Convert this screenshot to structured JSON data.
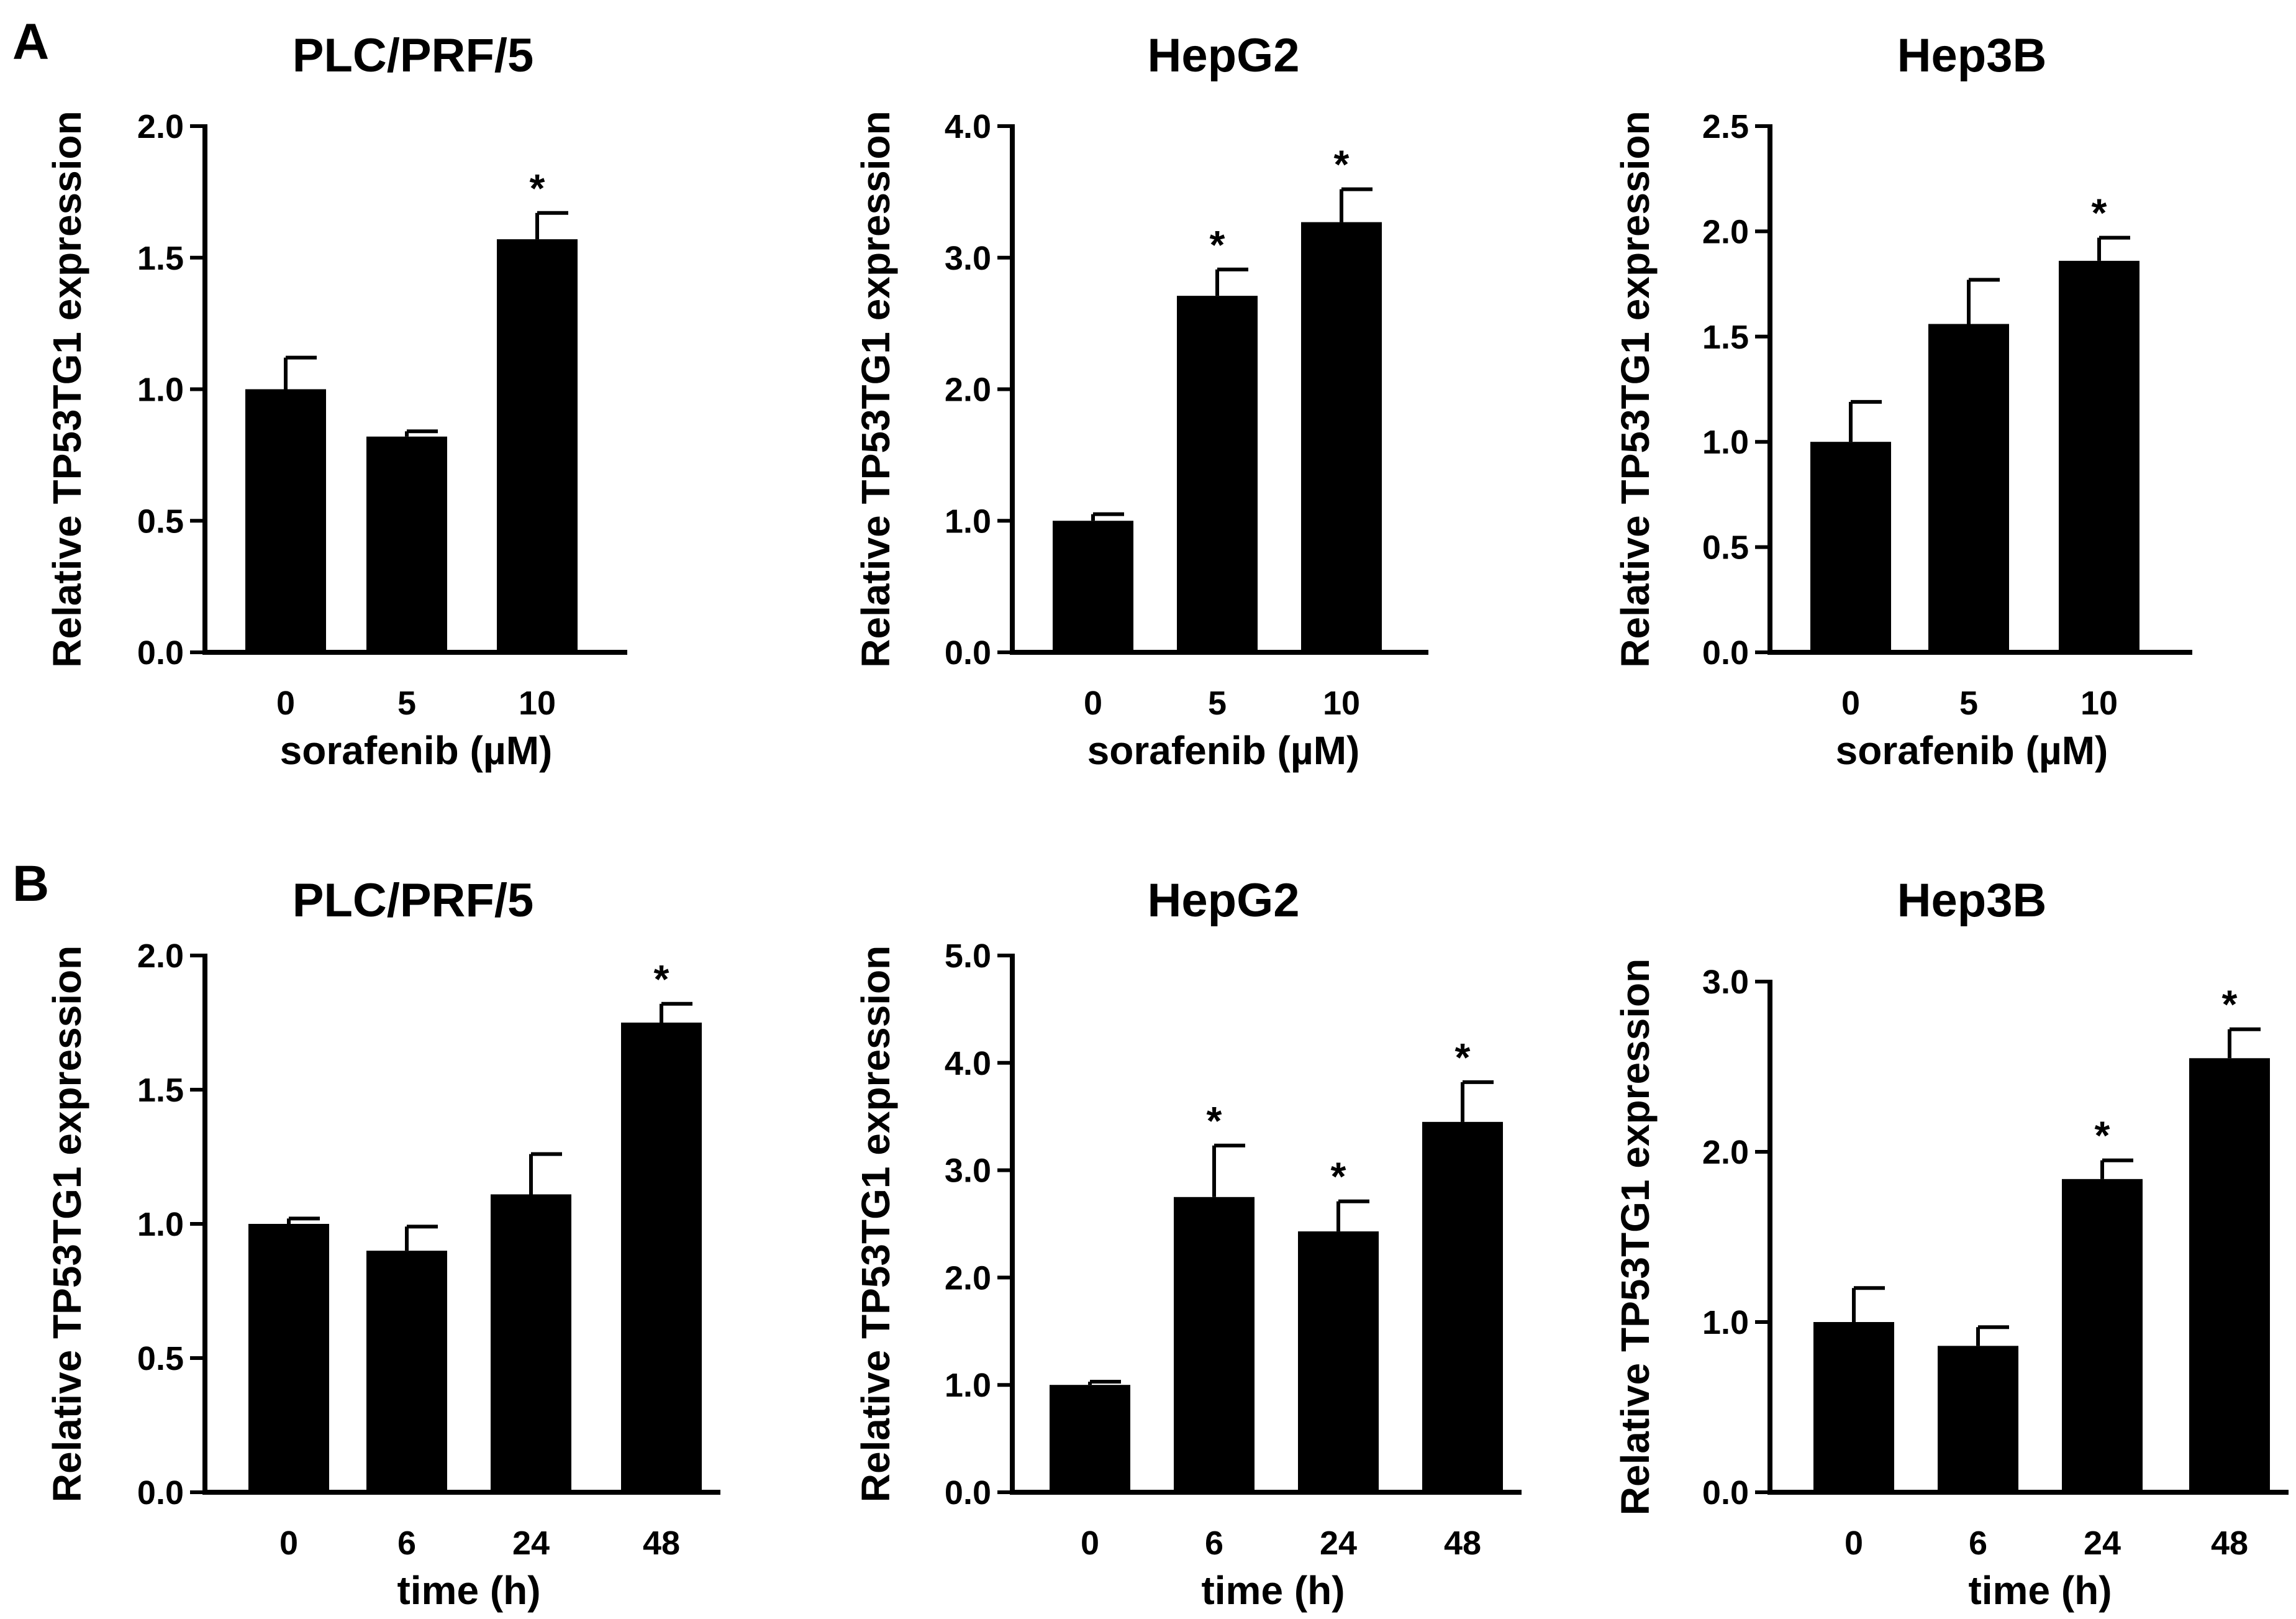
{
  "panels": [
    {
      "letter": "A"
    },
    {
      "letter": "B"
    }
  ],
  "colors": {
    "bar": "#000000",
    "axis": "#000000",
    "background": "#ffffff"
  },
  "chart_data": [
    {
      "type": "bar",
      "panel": "A",
      "title": "PLC/PRF/5",
      "xlabel": "sorafenib (µM)",
      "ylabel": "Relative TP53TG1 expression",
      "categories": [
        "0",
        "5",
        "10"
      ],
      "values": [
        1.0,
        0.82,
        1.57
      ],
      "errors": [
        0.12,
        0.02,
        0.1
      ],
      "significant": [
        false,
        false,
        true
      ],
      "sig_marker": "*",
      "ylim": [
        0,
        2.0
      ],
      "yticks": [
        0,
        0.5,
        1.0,
        1.5,
        2.0
      ],
      "ytick_labels": [
        "0.0",
        "0.5",
        "1.0",
        "1.5",
        "2.0"
      ]
    },
    {
      "type": "bar",
      "panel": "A",
      "title": "HepG2",
      "xlabel": "sorafenib (µM)",
      "ylabel": "Relative TP53TG1 expression",
      "categories": [
        "0",
        "5",
        "10"
      ],
      "values": [
        1.0,
        2.71,
        3.27
      ],
      "errors": [
        0.05,
        0.2,
        0.25
      ],
      "significant": [
        false,
        true,
        true
      ],
      "sig_marker": "*",
      "ylim": [
        0,
        4.0
      ],
      "yticks": [
        0,
        1,
        2,
        3,
        4
      ],
      "ytick_labels": [
        "0.0",
        "1.0",
        "2.0",
        "3.0",
        "4.0"
      ]
    },
    {
      "type": "bar",
      "panel": "A",
      "title": "Hep3B",
      "xlabel": "sorafenib (µM)",
      "ylabel": "Relative TP53TG1 expression",
      "categories": [
        "0",
        "5",
        "10"
      ],
      "values": [
        1.0,
        1.56,
        1.86
      ],
      "errors": [
        0.19,
        0.21,
        0.11
      ],
      "significant": [
        false,
        false,
        true
      ],
      "sig_marker": "*",
      "ylim": [
        0,
        2.5
      ],
      "yticks": [
        0,
        0.5,
        1.0,
        1.5,
        2.0,
        2.5
      ],
      "ytick_labels": [
        "0.0",
        "0.5",
        "1.0",
        "1.5",
        "2.0",
        "2.5"
      ]
    },
    {
      "type": "bar",
      "panel": "B",
      "title": "PLC/PRF/5",
      "xlabel": "time (h)",
      "ylabel": "Relative TP53TG1 expression",
      "categories": [
        "0",
        "6",
        "24",
        "48"
      ],
      "values": [
        1.0,
        0.9,
        1.11,
        1.75
      ],
      "errors": [
        0.02,
        0.09,
        0.15,
        0.07
      ],
      "significant": [
        false,
        false,
        false,
        true
      ],
      "sig_marker": "*",
      "ylim": [
        0,
        2.0
      ],
      "yticks": [
        0,
        0.5,
        1.0,
        1.5,
        2.0
      ],
      "ytick_labels": [
        "0.0",
        "0.5",
        "1.0",
        "1.5",
        "2.0"
      ]
    },
    {
      "type": "bar",
      "panel": "B",
      "title": "HepG2",
      "xlabel": "time (h)",
      "ylabel": "Relative TP53TG1 expression",
      "categories": [
        "0",
        "6",
        "24",
        "48"
      ],
      "values": [
        1.0,
        2.75,
        2.43,
        3.45
      ],
      "errors": [
        0.03,
        0.48,
        0.28,
        0.37
      ],
      "significant": [
        false,
        true,
        true,
        true
      ],
      "sig_marker": "*",
      "ylim": [
        0,
        5.0
      ],
      "yticks": [
        0,
        1,
        2,
        3,
        4,
        5
      ],
      "ytick_labels": [
        "0.0",
        "1.0",
        "2.0",
        "3.0",
        "4.0",
        "5.0"
      ]
    },
    {
      "type": "bar",
      "panel": "B",
      "title": "Hep3B",
      "xlabel": "time (h)",
      "ylabel": "Relative TP53TG1 expression",
      "categories": [
        "0",
        "6",
        "24",
        "48"
      ],
      "values": [
        1.0,
        0.86,
        1.84,
        2.55
      ],
      "errors": [
        0.2,
        0.11,
        0.11,
        0.17
      ],
      "significant": [
        false,
        false,
        true,
        true
      ],
      "sig_marker": "*",
      "ylim": [
        0,
        3.0
      ],
      "yticks": [
        0,
        1,
        2,
        3
      ],
      "ytick_labels": [
        "0.0",
        "1.0",
        "2.0",
        "3.0"
      ]
    }
  ]
}
